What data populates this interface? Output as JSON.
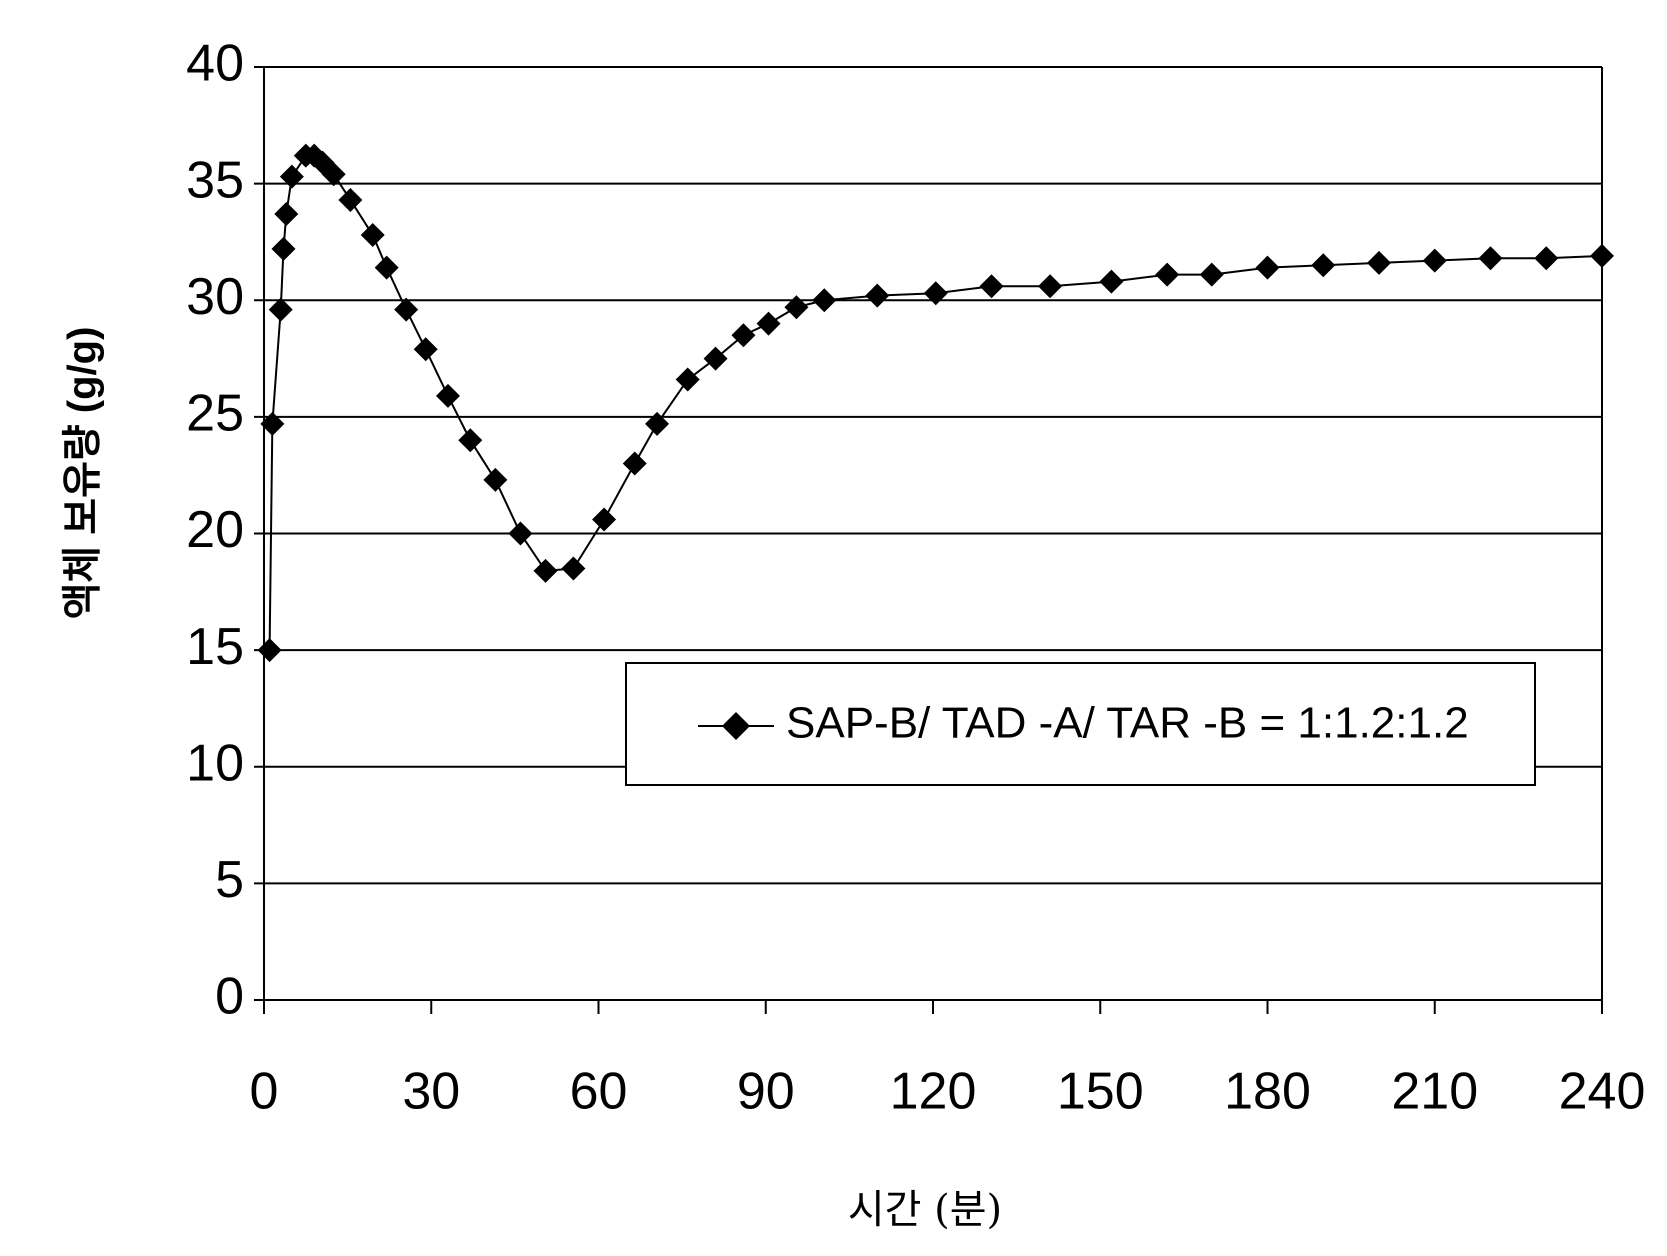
{
  "chart_data": {
    "type": "line",
    "x_label": "시간 (분)",
    "y_label": "액체 보유량 (g/g)",
    "xlim": [
      0,
      240
    ],
    "xticks": [
      0,
      30,
      60,
      90,
      120,
      150,
      180,
      210,
      240
    ],
    "ylim": [
      0,
      40
    ],
    "yticks": [
      0,
      5,
      10,
      15,
      20,
      25,
      30,
      35,
      40
    ],
    "grid": true,
    "legend": "right",
    "x": [
      1,
      1.5,
      3,
      3.5,
      4,
      5,
      7.5,
      9,
      10.5,
      12.5,
      15.5,
      19.5,
      22,
      25.5,
      29,
      33,
      37,
      41.5,
      46,
      50.5,
      55.5,
      61,
      66.5,
      70.5,
      76,
      81,
      86,
      90.5,
      95.5,
      100.5,
      110,
      120.5,
      130.5,
      141,
      152,
      162,
      170,
      180,
      190,
      200,
      210,
      220,
      230,
      240
    ],
    "series": [
      {
        "name": "SAP-B/ TAD -A/ TAR -B = 1:1.2:1.2",
        "color": "#000000",
        "values": [
          15,
          24.7,
          29.6,
          32.2,
          33.7,
          35.3,
          36.2,
          36.2,
          35.9,
          35.4,
          34.3,
          32.8,
          31.4,
          29.6,
          27.9,
          25.9,
          24.0,
          22.3,
          20.0,
          18.4,
          18.5,
          20.6,
          23.0,
          24.7,
          26.6,
          27.5,
          28.5,
          29.0,
          29.7,
          30.0,
          30.2,
          30.3,
          30.6,
          30.6,
          30.8,
          31.1,
          31.1,
          31.4,
          31.5,
          31.6,
          31.7,
          31.8,
          31.8,
          31.9
        ]
      }
    ]
  }
}
